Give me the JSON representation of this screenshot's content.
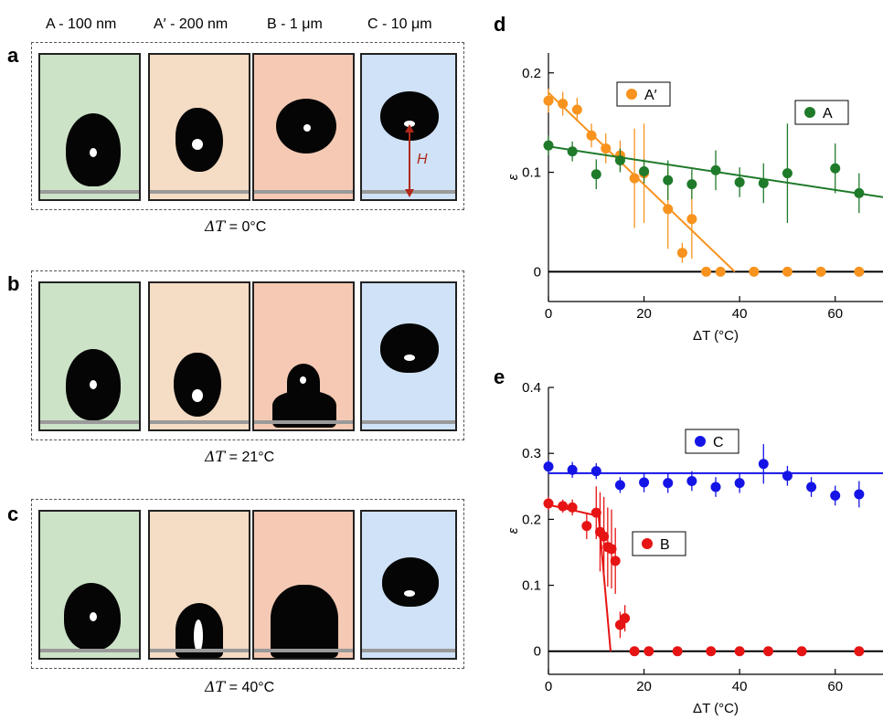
{
  "column_headers": [
    "A - 100 nm",
    "A′ - 200 nm",
    "B - 1 μm",
    "C - 10 μm"
  ],
  "panels": {
    "a": {
      "letter": "a",
      "caption": "ΔT = 0°C",
      "caption_var": "ΔT",
      "caption_rest": " = 0°C"
    },
    "b": {
      "letter": "b",
      "caption": "ΔT = 21°C",
      "caption_var": "ΔT",
      "caption_rest": " = 21°C"
    },
    "c": {
      "letter": "c",
      "caption": "ΔT = 40°C",
      "caption_var": "ΔT",
      "caption_rest": " = 40°C"
    },
    "d": {
      "letter": "d"
    },
    "e": {
      "letter": "e"
    }
  },
  "height_marker": "H",
  "tile_colors": {
    "A": "#cde3c8",
    "A′": "#f5dcc4",
    "B": "#f5c9b4",
    "C": "#cfe2f7"
  },
  "chart_data": [
    {
      "panel": "d",
      "type": "scatter",
      "xlabel": "ΔT (°C)",
      "ylabel": "ε",
      "xlim": [
        0,
        70
      ],
      "ylim": [
        -0.03,
        0.22
      ],
      "xticks": [
        0,
        20,
        40,
        60
      ],
      "yticks": [
        0,
        0.1,
        0.2
      ],
      "ytick_labels": [
        "0",
        "0.1",
        "0.2"
      ],
      "legend_placement": "in-plot labels",
      "series": [
        {
          "name": "A′",
          "color": "#f7931e",
          "x": [
            0,
            3,
            6,
            9,
            12,
            15,
            18,
            20,
            25,
            28,
            30,
            33,
            36,
            43,
            50,
            57,
            65
          ],
          "y": [
            0.172,
            0.169,
            0.163,
            0.137,
            0.124,
            0.117,
            0.094,
            0.099,
            0.063,
            0.019,
            0.053,
            0,
            0,
            0,
            0,
            0,
            0
          ],
          "err": [
            0.012,
            0.012,
            0.012,
            0.012,
            0.015,
            0.015,
            0.05,
            0.05,
            0.04,
            0.01,
            0.04,
            0,
            0,
            0,
            0,
            0,
            0
          ],
          "fit": {
            "x": [
              0,
              39
            ],
            "y": [
              0.18,
              0
            ]
          }
        },
        {
          "name": "A",
          "color": "#1f7a2a",
          "x": [
            0,
            5,
            10,
            15,
            20,
            25,
            30,
            35,
            40,
            45,
            50,
            60,
            65
          ],
          "y": [
            0.127,
            0.121,
            0.098,
            0.112,
            0.101,
            0.092,
            0.088,
            0.102,
            0.09,
            0.089,
            0.099,
            0.104,
            0.079
          ],
          "err": [
            0.01,
            0.01,
            0.015,
            0.012,
            0.012,
            0.02,
            0.015,
            0.02,
            0.015,
            0.02,
            0.05,
            0.025,
            0.02
          ],
          "fit": {
            "x": [
              0,
              70
            ],
            "y": [
              0.126,
              0.075
            ]
          }
        }
      ],
      "zero_line": 0
    },
    {
      "panel": "e",
      "type": "scatter",
      "xlabel": "ΔT (°C)",
      "ylabel": "ε",
      "xlim": [
        0,
        70
      ],
      "ylim": [
        -0.035,
        0.4
      ],
      "xticks": [
        0,
        20,
        40,
        60
      ],
      "yticks": [
        0,
        0.1,
        0.2,
        0.3,
        0.4
      ],
      "ytick_labels": [
        "0",
        "0.1",
        "0.2",
        "0.3",
        "0.4"
      ],
      "legend_placement": "in-plot labels",
      "series": [
        {
          "name": "C",
          "color": "#1414e6",
          "x": [
            0,
            5,
            10,
            15,
            20,
            25,
            30,
            35,
            40,
            45,
            50,
            55,
            60,
            65
          ],
          "y": [
            0.28,
            0.275,
            0.273,
            0.252,
            0.256,
            0.255,
            0.258,
            0.249,
            0.255,
            0.284,
            0.266,
            0.249,
            0.236,
            0.238
          ],
          "err": [
            0.01,
            0.012,
            0.012,
            0.012,
            0.015,
            0.015,
            0.015,
            0.015,
            0.015,
            0.03,
            0.015,
            0.015,
            0.015,
            0.02
          ],
          "fit": {
            "x": [
              0,
              70
            ],
            "y": [
              0.27,
              0.27
            ]
          }
        },
        {
          "name": "B",
          "color": "#e61414",
          "x": [
            0,
            3,
            5,
            8,
            10,
            10.8,
            11.6,
            12.4,
            13.2,
            14,
            15,
            16,
            18,
            21,
            27,
            34,
            40,
            46,
            53,
            65
          ],
          "y": [
            0.224,
            0.22,
            0.218,
            0.19,
            0.21,
            0.181,
            0.174,
            0.158,
            0.155,
            0.137,
            0.04,
            0.05,
            0,
            0,
            0,
            0,
            0,
            0,
            0,
            0
          ],
          "err": [
            0.01,
            0.01,
            0.012,
            0.02,
            0.04,
            0.06,
            0.06,
            0.06,
            0.06,
            0.05,
            0.02,
            0.02,
            0,
            0,
            0,
            0,
            0,
            0,
            0,
            0
          ],
          "fit": {
            "x": [
              0,
              10.5,
              13
            ],
            "y": [
              0.222,
              0.205,
              0
            ]
          }
        }
      ],
      "zero_line": 0
    }
  ]
}
